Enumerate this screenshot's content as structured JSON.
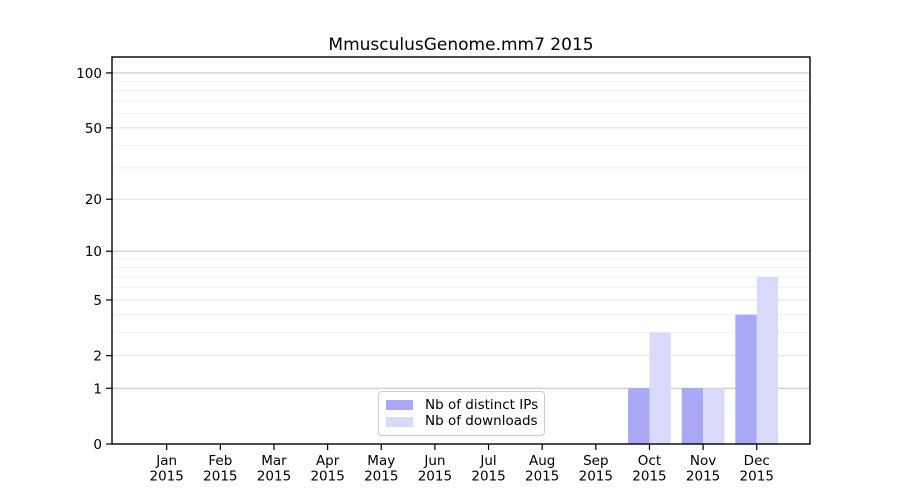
{
  "chart_data": {
    "type": "bar",
    "title": "MmusculusGenome.mm7 2015",
    "categories": [
      "Jan",
      "Feb",
      "Mar",
      "Apr",
      "May",
      "Jun",
      "Jul",
      "Aug",
      "Sep",
      "Oct",
      "Nov",
      "Dec"
    ],
    "category_year": "2015",
    "series": [
      {
        "name": "Nb of distinct IPs",
        "color": "#a8a8f5",
        "values": [
          0,
          0,
          0,
          0,
          0,
          0,
          0,
          0,
          0,
          1,
          1,
          4
        ]
      },
      {
        "name": "Nb of downloads",
        "color": "#d9d9f9",
        "values": [
          0,
          0,
          0,
          0,
          0,
          0,
          0,
          0,
          0,
          3,
          1,
          7
        ]
      }
    ],
    "y_axis": {
      "scale": "log1p",
      "tick_labels": [
        "0",
        "1",
        "2",
        "5",
        "10",
        "20",
        "50",
        "100"
      ],
      "tick_values": [
        0,
        1,
        2,
        5,
        10,
        20,
        50,
        100
      ],
      "power_gridlines": [
        1,
        10,
        100
      ],
      "mid_gridlines": [
        2,
        5,
        20,
        50
      ],
      "minor_gridlines": [
        3,
        4,
        6,
        7,
        8,
        9,
        30,
        40,
        60,
        70,
        80,
        90
      ],
      "ylim": [
        0,
        121
      ]
    },
    "x_axis": {
      "ylim_note": "",
      "label": ""
    },
    "legend_position": "bottom-center",
    "grid": true,
    "colors": {
      "axis": "#000000",
      "grid_power": "#c8c8c8",
      "grid_mid": "#e4e4e4",
      "grid_minor": "#f2f2f2",
      "background": "#ffffff"
    }
  }
}
